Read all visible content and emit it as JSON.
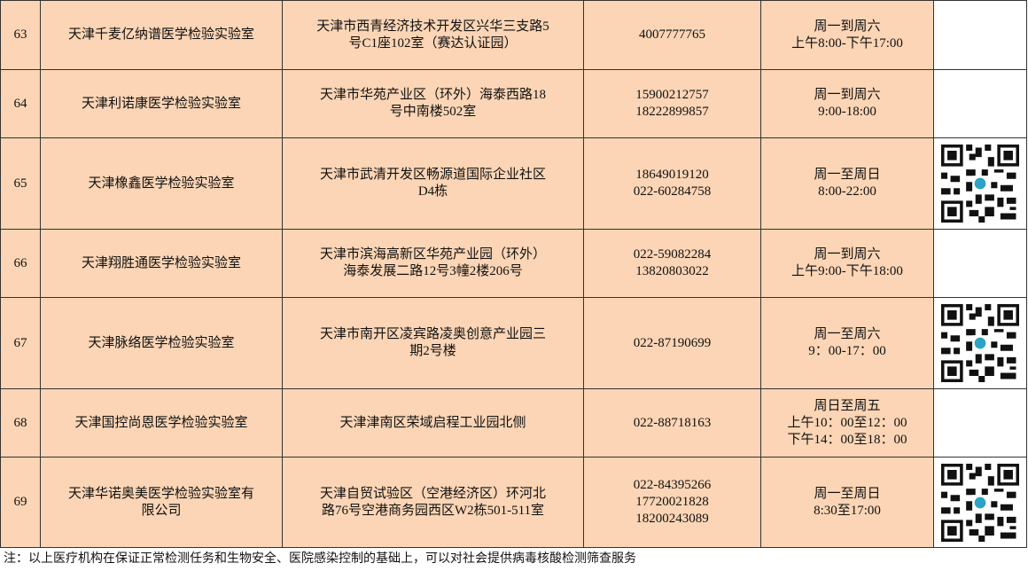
{
  "table": {
    "rows": [
      {
        "no": 63,
        "name": [
          "天津千麦亿纳谱医学检验实验室"
        ],
        "address": [
          "天津市西青经济技术开发区兴华三支路5",
          "号C1座102室（赛达认证园）"
        ],
        "phone": [
          "4007777765"
        ],
        "hours": [
          "周一到周六",
          "上午8:00-下午17:00"
        ],
        "has_qr": false
      },
      {
        "no": 64,
        "name": [
          "天津利诺康医学检验实验室"
        ],
        "address": [
          "天津市华苑产业区（环外）海泰西路18",
          "号中南楼502室"
        ],
        "phone": [
          "15900212757",
          "18222899857"
        ],
        "hours": [
          "周一到周六",
          "9:00-18:00"
        ],
        "has_qr": false
      },
      {
        "no": 65,
        "name": [
          "天津橡鑫医学检验实验室"
        ],
        "address": [
          "天津市武清开发区畅源道国际企业社区",
          "D4栋"
        ],
        "phone": [
          "18649019120",
          "022-60284758"
        ],
        "hours": [
          "周一至周日",
          "8:00-22:00"
        ],
        "has_qr": true
      },
      {
        "no": 66,
        "name": [
          "天津翔胜通医学检验实验室"
        ],
        "address": [
          "天津市滨海高新区华苑产业园（环外）",
          "海泰发展二路12号3幢2楼206号"
        ],
        "phone": [
          "022-59082284",
          "13820803022"
        ],
        "hours": [
          "周一到周六",
          "上午9:00-下午18:00"
        ],
        "has_qr": false
      },
      {
        "no": 67,
        "name": [
          "天津脉络医学检验实验室"
        ],
        "address": [
          "天津市南开区凌宾路凌奥创意产业园三",
          "期2号楼"
        ],
        "phone": [
          "022-87190699"
        ],
        "hours": [
          "周一至周六",
          "9：00-17：00"
        ],
        "has_qr": true
      },
      {
        "no": 68,
        "name": [
          "天津国控尚恩医学检验实验室"
        ],
        "address": [
          "天津津南区荣域启程工业园北侧"
        ],
        "phone": [
          "022-88718163"
        ],
        "hours": [
          "周日至周五",
          "上午10：00至12：00",
          "下午14：00至18：00"
        ],
        "has_qr": false
      },
      {
        "no": 69,
        "name": [
          "天津华诺奥美医学检验实验室有",
          "限公司"
        ],
        "address": [
          "天津自贸试验区（空港经济区）环河北",
          "路76号空港商务园西区W2栋501-511室"
        ],
        "phone": [
          "022-84395266",
          "17720021828",
          "18200243089"
        ],
        "hours": [
          "周一至周日",
          "8:30至17:00"
        ],
        "has_qr": true
      }
    ]
  },
  "note": "注：以上医疗机构在保证正常检测任务和生物安全、医院感染控制的基础上，可以对社会提供病毒核酸检测筛查服务"
}
